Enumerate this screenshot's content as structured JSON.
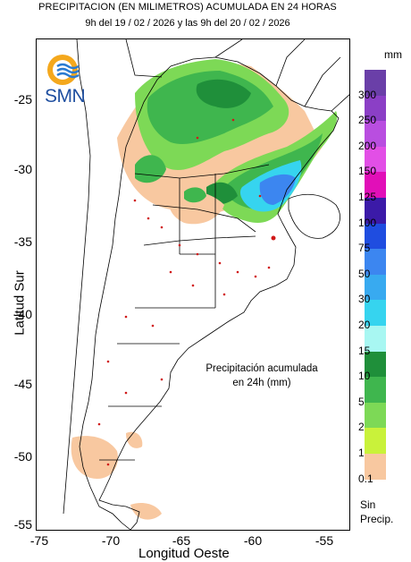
{
  "title": {
    "line1": "PRECIPITACION (EN MILIMETROS) ACUMULADA EN 24 HORAS",
    "line2": "9h del 19 / 02 / 2026  y las 9h del 20 / 02 / 2026"
  },
  "logo": {
    "text": "SMN",
    "icon": "smn-sun-waves-icon"
  },
  "axes": {
    "xlabel": "Longitud Oeste",
    "ylabel": "Latitud Sur",
    "xticks": [
      "-75",
      "-70",
      "-65",
      "-60",
      "-55"
    ],
    "yticks": [
      "-25",
      "-30",
      "-35",
      "-40",
      "-45",
      "-50",
      "-55"
    ],
    "xlim": [
      -75,
      -53
    ],
    "ylim": [
      -55.3,
      -21.5
    ]
  },
  "annotation": {
    "line1": "Precipitación acumulada",
    "line2": "en 24h (mm)"
  },
  "legend": {
    "unit": "mm",
    "levels": [
      {
        "label": "300",
        "color": "#6a3fa8"
      },
      {
        "label": "250",
        "color": "#8b3fc6"
      },
      {
        "label": "200",
        "color": "#b94ee0"
      },
      {
        "label": "150",
        "color": "#e24fe6"
      },
      {
        "label": "125",
        "color": "#e10fb8"
      },
      {
        "label": "100",
        "color": "#3b1aa8"
      },
      {
        "label": "75",
        "color": "#1f4de0"
      },
      {
        "label": "50",
        "color": "#3c86f0"
      },
      {
        "label": "30",
        "color": "#38aaf0"
      },
      {
        "label": "20",
        "color": "#36d4ef"
      },
      {
        "label": "15",
        "color": "#a8f7f2"
      },
      {
        "label": "10",
        "color": "#1f8f3a"
      },
      {
        "label": "5",
        "color": "#3fb64e"
      },
      {
        "label": "2",
        "color": "#7dd956"
      },
      {
        "label": "1",
        "color": "#c9f23a"
      },
      {
        "label": "0.1",
        "color": "#f8c8a0"
      }
    ],
    "none_line1": "Sin",
    "none_line2": "Precip."
  },
  "colors": {
    "low": "#f8c8a0",
    "light_green": "#7dd956",
    "green": "#3fb64e",
    "dark_green": "#1f8f3a",
    "cyan": "#36d4ef",
    "blue": "#3c86f0",
    "station": "#d01818"
  }
}
